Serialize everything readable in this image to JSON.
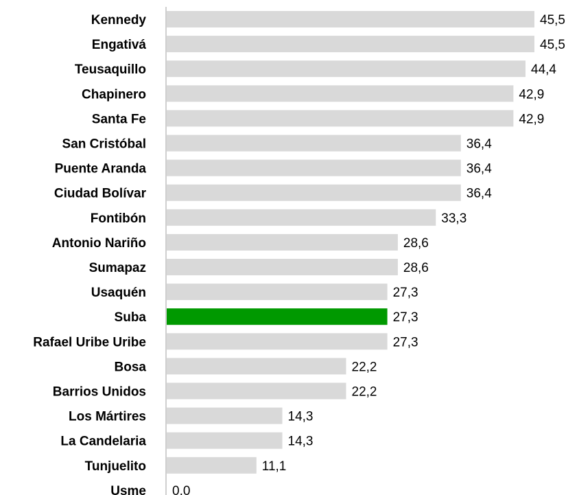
{
  "chart_data": {
    "type": "bar",
    "orientation": "horizontal",
    "categories": [
      "Kennedy",
      "Engativá",
      "Teusaquillo",
      "Chapinero",
      "Santa Fe",
      "San Cristóbal",
      "Puente Aranda",
      "Ciudad Bolívar",
      "Fontibón",
      "Antonio Nariño",
      "Sumapaz",
      "Usaquén",
      "Suba",
      "Rafael Uribe Uribe",
      "Bosa",
      "Barrios Unidos",
      "Los Mártires",
      "La Candelaria",
      "Tunjuelito",
      "Usme"
    ],
    "values": [
      45.5,
      45.5,
      44.4,
      42.9,
      42.9,
      36.4,
      36.4,
      36.4,
      33.3,
      28.6,
      28.6,
      27.3,
      27.3,
      27.3,
      22.2,
      22.2,
      14.3,
      14.3,
      11.1,
      0.0
    ],
    "value_labels": [
      "45,5",
      "45,5",
      "44,4",
      "42,9",
      "42,9",
      "36,4",
      "36,4",
      "36,4",
      "33,3",
      "28,6",
      "28,6",
      "27,3",
      "27,3",
      "27,3",
      "22,2",
      "22,2",
      "14,3",
      "14,3",
      "11,1",
      "0,0"
    ],
    "highlight_category": "Suba",
    "colors": {
      "bar": "#d9d9d9",
      "highlight": "#009900",
      "axis": "#bfbfbf",
      "text": "#000000"
    },
    "title": "",
    "xlabel": "",
    "ylabel": "",
    "xlim": [
      0,
      45.5
    ],
    "grid": false,
    "legend": "none"
  }
}
